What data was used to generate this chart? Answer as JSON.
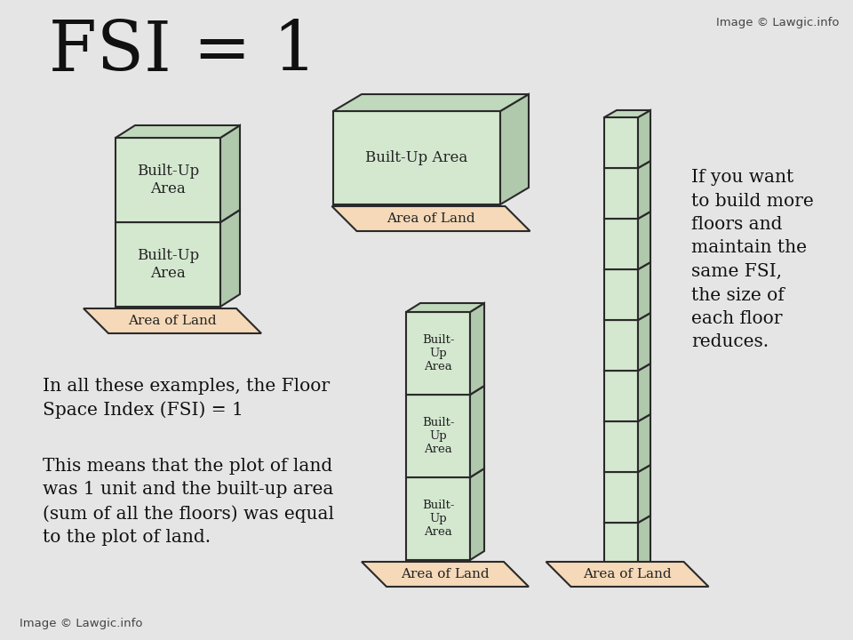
{
  "bg_color": "#e5e5e5",
  "building_fill": "#d4e8d0",
  "building_edge": "#2a2a2a",
  "building_side_fill": "#b0c8ac",
  "building_top_fill": "#c0d8bc",
  "land_fill": "#f5d9b8",
  "land_edge": "#2a2a2a",
  "title": "FSI = 1",
  "title_fontsize": 56,
  "watermark_top": "Image © Lawgic.info",
  "watermark_bottom": "Image © Lawgic.info",
  "text1": "In all these examples, the Floor\nSpace Index (FSI) = 1",
  "text2": "This means that the plot of land\nwas 1 unit and the built-up area\n(sum of all the floors) was equal\nto the plot of land.",
  "side_text": "If you want\nto build more\nfloors and\nmaintain the\nsame FSI,\nthe size of\neach floor\nreduces.",
  "label_buildup": "Built-Up\nArea",
  "label_buildup_short": "Built-\nUp\nArea",
  "label_land": "Area of Land"
}
